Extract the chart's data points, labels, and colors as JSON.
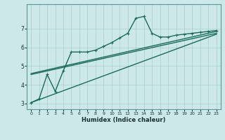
{
  "xlabel": "Humidex (Indice chaleur)",
  "ylabel": "",
  "bg_color": "#cce8e8",
  "line_color": "#1a6b5a",
  "grid_color": "#aacece",
  "xlim": [
    -0.5,
    23.5
  ],
  "ylim": [
    2.7,
    8.3
  ],
  "xticks": [
    0,
    1,
    2,
    3,
    4,
    5,
    6,
    7,
    8,
    9,
    10,
    11,
    12,
    13,
    14,
    15,
    16,
    17,
    18,
    19,
    20,
    21,
    22,
    23
  ],
  "yticks": [
    3,
    4,
    5,
    6,
    7
  ],
  "lines": [
    {
      "x": [
        0,
        1,
        2,
        3,
        4,
        5,
        6,
        7,
        8,
        9,
        10,
        11,
        12,
        13,
        14,
        15,
        16,
        17,
        18,
        19,
        20,
        21,
        22,
        23
      ],
      "y": [
        3.05,
        3.25,
        4.55,
        3.65,
        4.75,
        5.75,
        5.75,
        5.75,
        5.85,
        6.05,
        6.25,
        6.5,
        6.75,
        7.55,
        7.65,
        6.75,
        6.55,
        6.55,
        6.65,
        6.7,
        6.75,
        6.8,
        6.85,
        6.9
      ],
      "marker": true
    },
    {
      "x": [
        0,
        23
      ],
      "y": [
        4.6,
        6.85
      ],
      "marker": false
    },
    {
      "x": [
        0,
        23
      ],
      "y": [
        4.55,
        6.75
      ],
      "marker": false
    },
    {
      "x": [
        0,
        23
      ],
      "y": [
        3.05,
        6.7
      ],
      "marker": false
    }
  ],
  "markersize": 3.5,
  "linewidth": 1.0,
  "markeredgewidth": 0.8
}
